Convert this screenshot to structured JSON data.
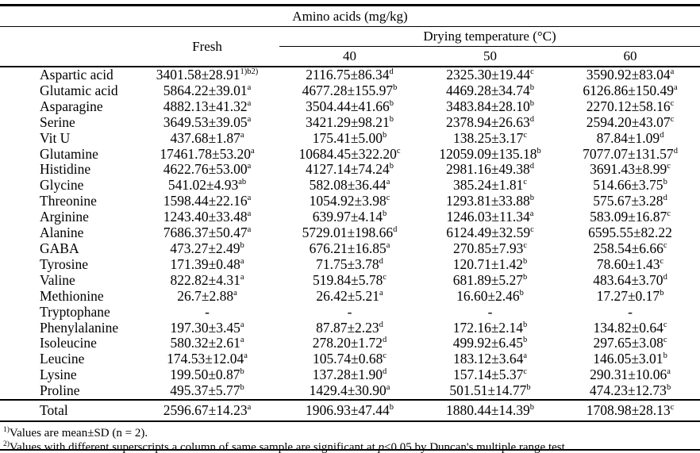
{
  "table": {
    "title": "Amino acids (mg/kg)",
    "col_headers": {
      "fresh": "Fresh",
      "drying": "Drying temperature (°C)",
      "temps": [
        "40",
        "50",
        "60"
      ]
    },
    "rows": [
      {
        "name": "Aspartic acid",
        "cells": [
          {
            "v": "3401.58±28.91",
            "s": "1)b2)"
          },
          {
            "v": "2116.75±86.34",
            "s": "d"
          },
          {
            "v": "2325.30±19.44",
            "s": "c"
          },
          {
            "v": "3590.92±83.04",
            "s": "a"
          }
        ]
      },
      {
        "name": "Glutamic acid",
        "cells": [
          {
            "v": "5864.22±39.01",
            "s": "a"
          },
          {
            "v": "4677.28±155.97",
            "s": "b"
          },
          {
            "v": "4469.28±34.74",
            "s": "b"
          },
          {
            "v": "6126.86±150.49",
            "s": "a"
          }
        ]
      },
      {
        "name": "Asparagine",
        "cells": [
          {
            "v": "4882.13±41.32",
            "s": "a"
          },
          {
            "v": "3504.44±41.66",
            "s": "b"
          },
          {
            "v": "3483.84±28.10",
            "s": "b"
          },
          {
            "v": "2270.12±58.16",
            "s": "c"
          }
        ]
      },
      {
        "name": "Serine",
        "cells": [
          {
            "v": "3649.53±39.05",
            "s": "a"
          },
          {
            "v": "3421.29±98.21",
            "s": "b"
          },
          {
            "v": "2378.94±26.63",
            "s": "d"
          },
          {
            "v": "2594.20±43.07",
            "s": "c"
          }
        ]
      },
      {
        "name": "Vit U",
        "cells": [
          {
            "v": "437.68±1.87",
            "s": "a"
          },
          {
            "v": "175.41±5.00",
            "s": "b"
          },
          {
            "v": "138.25±3.17",
            "s": "c"
          },
          {
            "v": "87.84±1.09",
            "s": "d"
          }
        ]
      },
      {
        "name": "Glutamine",
        "cells": [
          {
            "v": "17461.78±53.20",
            "s": "a"
          },
          {
            "v": "10684.45±322.20",
            "s": "c"
          },
          {
            "v": "12059.09±135.18",
            "s": "b"
          },
          {
            "v": "7077.07±131.57",
            "s": "d"
          }
        ]
      },
      {
        "name": "Histidine",
        "cells": [
          {
            "v": "4622.76±53.00",
            "s": "a"
          },
          {
            "v": "4127.14±74.24",
            "s": "b"
          },
          {
            "v": "2981.16±49.38",
            "s": "d"
          },
          {
            "v": "3691.43±8.99",
            "s": "c"
          }
        ]
      },
      {
        "name": "Glycine",
        "cells": [
          {
            "v": "541.02±4.93",
            "s": "ab"
          },
          {
            "v": "582.08±36.44",
            "s": "a"
          },
          {
            "v": "385.24±1.81",
            "s": "c"
          },
          {
            "v": "514.66±3.75",
            "s": "b"
          }
        ]
      },
      {
        "name": "Threonine",
        "cells": [
          {
            "v": "1598.44±22.16",
            "s": "a"
          },
          {
            "v": "1054.92±3.98",
            "s": "c"
          },
          {
            "v": "1293.81±33.88",
            "s": "b"
          },
          {
            "v": "575.67±3.28",
            "s": "d"
          }
        ]
      },
      {
        "name": "Arginine",
        "cells": [
          {
            "v": "1243.40±33.48",
            "s": "a"
          },
          {
            "v": "639.97±4.14",
            "s": "b"
          },
          {
            "v": "1246.03±11.34",
            "s": "a"
          },
          {
            "v": "583.09±16.87",
            "s": "c"
          }
        ]
      },
      {
        "name": "Alanine",
        "cells": [
          {
            "v": "7686.37±50.47",
            "s": "a"
          },
          {
            "v": "5729.01±198.66",
            "s": "d"
          },
          {
            "v": "6124.49±32.59",
            "s": "c"
          },
          {
            "v": "6595.55±82.22",
            "s": ""
          }
        ]
      },
      {
        "name": "GABA",
        "cells": [
          {
            "v": "473.27±2.49",
            "s": "b"
          },
          {
            "v": "676.21±16.85",
            "s": "a"
          },
          {
            "v": "270.85±7.93",
            "s": "c"
          },
          {
            "v": "258.54±6.66",
            "s": "c"
          }
        ]
      },
      {
        "name": "Tyrosine",
        "cells": [
          {
            "v": "171.39±0.48",
            "s": "a"
          },
          {
            "v": "71.75±3.78",
            "s": "d"
          },
          {
            "v": "120.71±1.42",
            "s": "b"
          },
          {
            "v": "78.60±1.43",
            "s": "c"
          }
        ]
      },
      {
        "name": "Valine",
        "cells": [
          {
            "v": "822.82±4.31",
            "s": "a"
          },
          {
            "v": "519.84±5.78",
            "s": "c"
          },
          {
            "v": "681.89±5.27",
            "s": "b"
          },
          {
            "v": "483.64±3.70",
            "s": "d"
          }
        ]
      },
      {
        "name": "Methionine",
        "cells": [
          {
            "v": "26.7±2.88",
            "s": "a"
          },
          {
            "v": "26.42±5.21",
            "s": "a"
          },
          {
            "v": "16.60±2.46",
            "s": "b"
          },
          {
            "v": "17.27±0.17",
            "s": "b"
          }
        ]
      },
      {
        "name": "Tryptophane",
        "cells": [
          {
            "v": "-",
            "s": ""
          },
          {
            "v": "-",
            "s": ""
          },
          {
            "v": "-",
            "s": ""
          },
          {
            "v": "-",
            "s": ""
          }
        ]
      },
      {
        "name": "Phenylalanine",
        "cells": [
          {
            "v": "197.30±3.45",
            "s": "a"
          },
          {
            "v": "87.87±2.23",
            "s": "d"
          },
          {
            "v": "172.16±2.14",
            "s": "b"
          },
          {
            "v": "134.82±0.64",
            "s": "c"
          }
        ]
      },
      {
        "name": "Isoleucine",
        "cells": [
          {
            "v": "580.32±2.61",
            "s": "a"
          },
          {
            "v": "278.20±1.72",
            "s": "d"
          },
          {
            "v": "499.92±6.45",
            "s": "b"
          },
          {
            "v": "297.65±3.08",
            "s": "c"
          }
        ]
      },
      {
        "name": "Leucine",
        "cells": [
          {
            "v": "174.53±12.04",
            "s": "a"
          },
          {
            "v": "105.74±0.68",
            "s": "c"
          },
          {
            "v": "183.12±3.64",
            "s": "a"
          },
          {
            "v": "146.05±3.01",
            "s": "b"
          }
        ]
      },
      {
        "name": "Lysine",
        "cells": [
          {
            "v": "199.50±0.87",
            "s": "b"
          },
          {
            "v": "137.28±1.90",
            "s": "d"
          },
          {
            "v": "157.14±5.37",
            "s": "c"
          },
          {
            "v": "290.31±10.06",
            "s": "a"
          }
        ]
      },
      {
        "name": "Proline",
        "cells": [
          {
            "v": "495.37±5.77",
            "s": "b"
          },
          {
            "v": "1429.4±30.90",
            "s": "a"
          },
          {
            "v": "501.51±14.77",
            "s": "b"
          },
          {
            "v": "474.23±12.73",
            "s": "b"
          }
        ]
      }
    ],
    "total": {
      "name": "Total",
      "cells": [
        {
          "v": "2596.67±14.23",
          "s": "a"
        },
        {
          "v": "1906.93±47.44",
          "s": "b"
        },
        {
          "v": "1880.44±14.39",
          "s": "b"
        },
        {
          "v": "1708.98±28.13",
          "s": "c"
        }
      ]
    },
    "footnotes": [
      {
        "marker": "1)",
        "text": "Values are mean±SD (n = 2)."
      },
      {
        "marker": "2)",
        "pre": "Values with different superscripts a column of same sample are significant at ",
        "italic": "p",
        "post": "<0.05 by Duncan's multiple range test."
      }
    ]
  }
}
